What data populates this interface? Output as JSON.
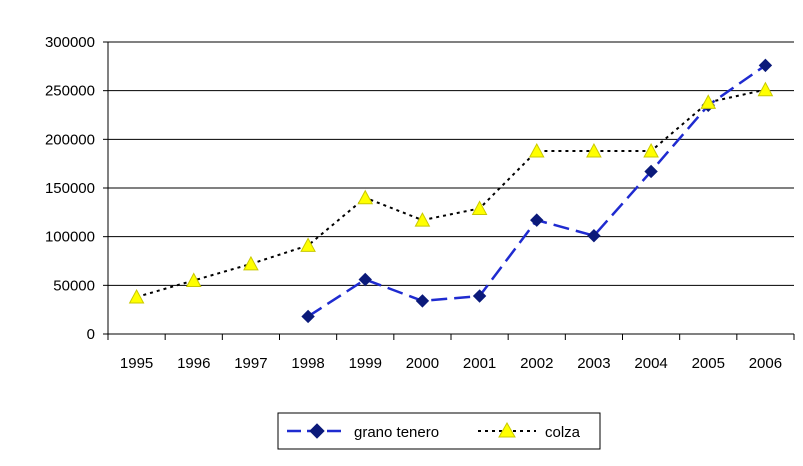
{
  "chart_data": {
    "type": "line",
    "title": "",
    "xlabel": "",
    "ylabel": "",
    "categories": [
      "1995",
      "1996",
      "1997",
      "1998",
      "1999",
      "2000",
      "2001",
      "2002",
      "2003",
      "2004",
      "2005",
      "2006"
    ],
    "ylim": [
      0,
      300000
    ],
    "yticks": [
      0,
      50000,
      100000,
      150000,
      200000,
      250000,
      300000
    ],
    "grid": "horizontal",
    "legend": "bottom",
    "series": [
      {
        "name": "grano tenero",
        "color": "#1f2bd0",
        "marker_color": "#0b1a7a",
        "marker": "diamond",
        "line_style": "long-dash",
        "values": [
          null,
          null,
          null,
          18000,
          56000,
          34000,
          39000,
          117000,
          101000,
          167000,
          235000,
          276000
        ]
      },
      {
        "name": "colza",
        "color": "#000000",
        "marker_color": "#ffff00",
        "marker": "triangle",
        "line_style": "dotted",
        "values": [
          38000,
          55000,
          72000,
          91000,
          140000,
          117000,
          129000,
          188000,
          188000,
          188000,
          238000,
          251000
        ]
      }
    ]
  }
}
